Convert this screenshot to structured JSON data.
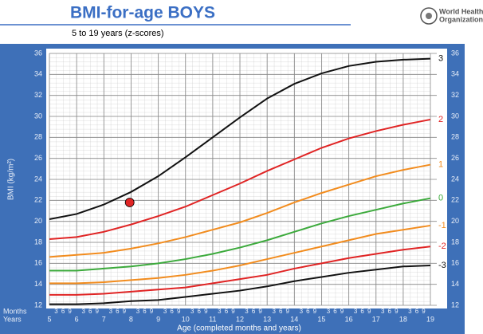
{
  "header": {
    "title": "BMI-for-age BOYS",
    "subtitle": "5 to 19 years (z-scores)",
    "logo": [
      "World Health",
      "Organization"
    ]
  },
  "chart_data": {
    "type": "line",
    "x": [
      5,
      6,
      7,
      8,
      9,
      10,
      11,
      12,
      13,
      14,
      15,
      16,
      17,
      18,
      19
    ],
    "series": [
      {
        "name": "3",
        "color": "#111111",
        "values": [
          20.2,
          20.7,
          21.6,
          22.8,
          24.3,
          26.1,
          28.0,
          29.9,
          31.7,
          33.1,
          34.1,
          34.8,
          35.2,
          35.4,
          35.5
        ]
      },
      {
        "name": "2",
        "color": "#e02424",
        "values": [
          18.3,
          18.5,
          19.0,
          19.7,
          20.5,
          21.4,
          22.5,
          23.6,
          24.8,
          25.9,
          27.0,
          27.9,
          28.6,
          29.2,
          29.7
        ]
      },
      {
        "name": "1",
        "color": "#f28c1e",
        "values": [
          16.6,
          16.8,
          17.0,
          17.4,
          17.9,
          18.5,
          19.2,
          19.9,
          20.8,
          21.8,
          22.7,
          23.5,
          24.3,
          24.9,
          25.4
        ]
      },
      {
        "name": "0",
        "color": "#3caa3c",
        "values": [
          15.3,
          15.3,
          15.5,
          15.7,
          16.0,
          16.4,
          16.9,
          17.5,
          18.2,
          19.0,
          19.8,
          20.5,
          21.1,
          21.7,
          22.2
        ]
      },
      {
        "name": "-1",
        "color": "#f28c1e",
        "values": [
          14.1,
          14.1,
          14.2,
          14.4,
          14.6,
          14.9,
          15.3,
          15.8,
          16.4,
          17.0,
          17.6,
          18.2,
          18.8,
          19.2,
          19.6
        ]
      },
      {
        "name": "-2",
        "color": "#e02424",
        "values": [
          13.0,
          13.0,
          13.1,
          13.3,
          13.5,
          13.7,
          14.1,
          14.5,
          14.9,
          15.5,
          16.0,
          16.5,
          16.9,
          17.3,
          17.6
        ]
      },
      {
        "name": "-3",
        "color": "#111111",
        "values": [
          12.1,
          12.1,
          12.2,
          12.4,
          12.5,
          12.8,
          13.1,
          13.4,
          13.8,
          14.3,
          14.7,
          15.1,
          15.4,
          15.7,
          15.8
        ]
      }
    ],
    "marker": {
      "x": 7.95,
      "y": 21.8,
      "color": "#e02424"
    },
    "xlim": [
      5,
      19
    ],
    "xticks": [
      5,
      6,
      7,
      8,
      9,
      10,
      11,
      12,
      13,
      14,
      15,
      16,
      17,
      18,
      19
    ],
    "month_ticks": [
      3,
      6,
      9
    ],
    "ylim": [
      12,
      36
    ],
    "yticks": [
      12,
      14,
      16,
      18,
      20,
      22,
      24,
      26,
      28,
      30,
      32,
      34,
      36
    ],
    "grid": true,
    "month_row_label": "Months",
    "year_row_label": "Years",
    "x_label": "Age (completed months and years)",
    "y_label": "BMI (kg/m²)"
  }
}
